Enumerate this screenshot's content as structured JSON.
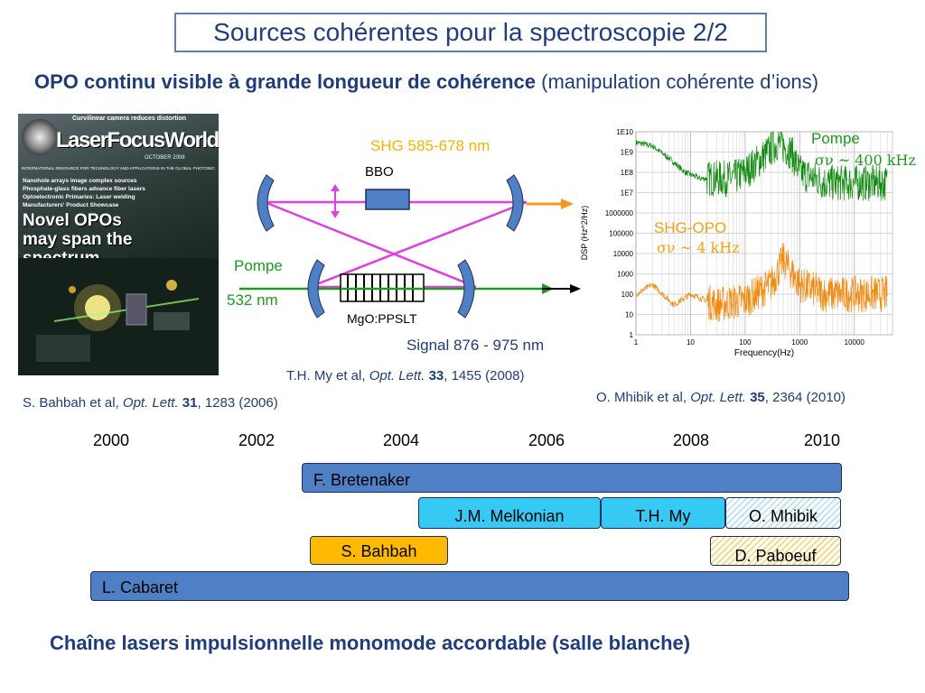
{
  "slide": {
    "title": "Sources cohérentes pour la spectroscopie 2/2",
    "subtitle_bold": "OPO continu visible à grande longueur de cohérence",
    "subtitle_paren": "(manipulation cohérente d’ions)",
    "bottom": "Chaîne lasers impulsionnelle monomode accordable (salle blanche)"
  },
  "magazine": {
    "masthead": "LaserFocusWorld",
    "top_banner": "Curvilinear camera reduces distortion",
    "date": "OCTOBER 2008",
    "strapline": "INTERNATIONAL RESOURCE FOR TECHNOLOGY AND APPLICATIONS IN THE GLOBAL PHOTONICS INDUSTRY",
    "bullets": [
      "Nanohole arrays image complex sources",
      "Phosphate-glass fibers advance fiber lasers",
      "Optoelectronic Primaries: Laser welding",
      "Manufacturers' Product Showcase"
    ],
    "cover_line1": "Novel OPOs",
    "cover_line2": "may span the",
    "cover_line3": "spectrum"
  },
  "diagram": {
    "shg_label": "SHG 585-678 nm",
    "bbo_label": "BBO",
    "pompe_label": "Pompe",
    "pump_wl": "532 nm",
    "crystal_label": "MgO:PPSLT",
    "signal_label": "Signal 876 - 975 nm",
    "colors": {
      "pump": "#1e9a1e",
      "shg": "#f59a1c",
      "signal": "#e040e0",
      "mirror": "#4f7fc4"
    }
  },
  "chart_data": {
    "type": "line",
    "xlabel": "Frequency(Hz)",
    "ylabel": "DSP (Hz^2/Hz)",
    "x_scale": "log",
    "y_scale": "log",
    "xlim": [
      1,
      50000
    ],
    "ylim": [
      1,
      10000000000
    ],
    "x_ticks": [
      "1",
      "10",
      "100",
      "1000",
      "10000"
    ],
    "y_ticks": [
      "1",
      "10",
      "100",
      "1000",
      "10000",
      "100000",
      "1000000",
      "1E7",
      "1E8",
      "1E9",
      "1E10"
    ],
    "grid": true,
    "series": [
      {
        "name": "Pompe",
        "note": "σν ~ 400 kHz",
        "color": "#0f8a0f",
        "x": [
          1,
          2,
          4,
          8,
          15,
          30,
          60,
          100,
          200,
          400,
          700,
          1000,
          3000,
          10000,
          40000
        ],
        "y": [
          3000000000,
          2000000000,
          500000000,
          100000000,
          50000000,
          50000000,
          50000000,
          100000000,
          500000000,
          3000000000,
          1000000000,
          100000000,
          30000000,
          30000000,
          30000000
        ]
      },
      {
        "name": "SHG-OPO",
        "note": "σν ~ 4 kHz",
        "color": "#f08a10",
        "x": [
          1,
          2,
          5,
          10,
          30,
          100,
          300,
          500,
          1000,
          3000,
          10000,
          40000
        ],
        "y": [
          100,
          300,
          30,
          100,
          30,
          50,
          300,
          5000,
          300,
          100,
          100,
          100
        ]
      }
    ]
  },
  "refs": {
    "bahbah": {
      "pre": "S. Bahbah et al, ",
      "journal": "Opt. Lett.",
      "vol": "31",
      "post": ", 1283 (2006)"
    },
    "my": {
      "pre": "T.H. My et al, ",
      "journal": "Opt. Lett.",
      "vol": "33",
      "post": ", 1455 (2008)"
    },
    "mhibik": {
      "pre": "O. Mhibik et al, ",
      "journal": "Opt. Lett.",
      "vol": "35",
      "post": ", 2364 (2010)"
    }
  },
  "timeline": {
    "years": [
      "2000",
      "2002",
      "2004",
      "2006",
      "2008",
      "2010"
    ],
    "bars": {
      "bretenaker": "F. Bretenaker",
      "melkonian": "J.M. Melkonian",
      "my": "T.H. My",
      "mhibik": "O. Mhibik",
      "bahbah": "S. Bahbah",
      "paboeuf": "D. Paboeuf",
      "cabaret": "L. Cabaret"
    }
  }
}
